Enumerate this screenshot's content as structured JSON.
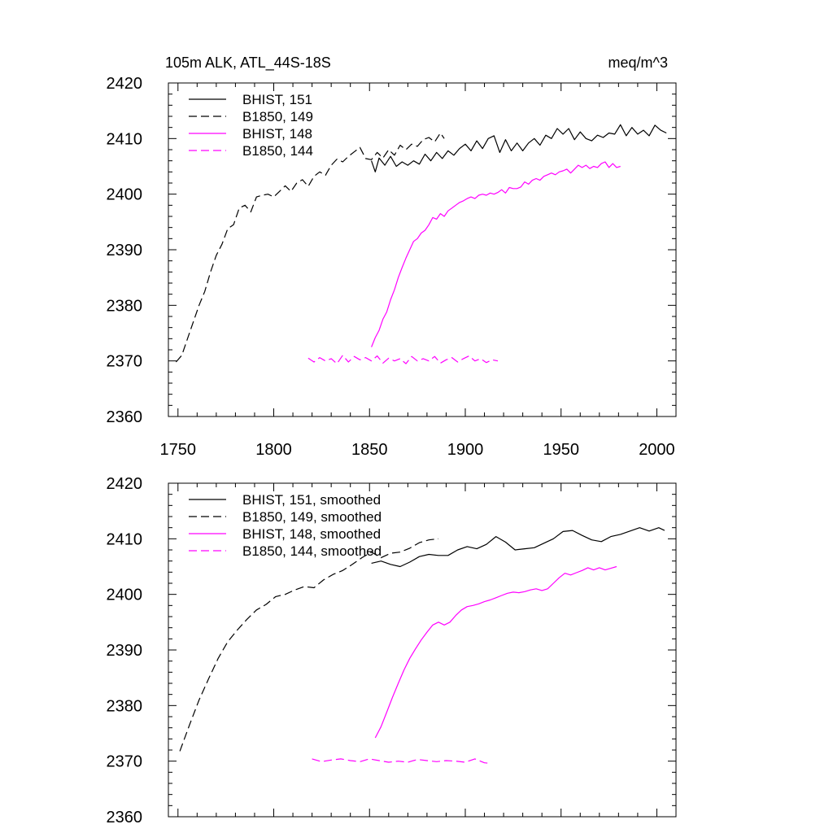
{
  "chart_data": [
    {
      "type": "line",
      "title": "105m ALK, ATL_44S-18S",
      "units": "meq/m^3",
      "xlim": [
        1745,
        2010
      ],
      "ylim": [
        2360,
        2420
      ],
      "xticks": [
        1750,
        1800,
        1850,
        1900,
        1950,
        2000
      ],
      "yticks": [
        2360,
        2370,
        2380,
        2390,
        2400,
        2410,
        2420
      ],
      "show_x_tick_labels": true,
      "legend_position": "top-left",
      "series": [
        {
          "name": "BHIST, 151",
          "color": "#000000",
          "dash": "solid",
          "x": [
            1851,
            1853,
            1855,
            1858,
            1861,
            1864,
            1867,
            1870,
            1873,
            1876,
            1879,
            1882,
            1885,
            1888,
            1891,
            1894,
            1897,
            1900,
            1903,
            1906,
            1909,
            1912,
            1915,
            1918,
            1921,
            1924,
            1927,
            1930,
            1933,
            1936,
            1939,
            1942,
            1945,
            1948,
            1951,
            1954,
            1957,
            1960,
            1963,
            1966,
            1969,
            1972,
            1975,
            1978,
            1981,
            1984,
            1987,
            1990,
            1993,
            1996,
            1999,
            2002,
            2005
          ],
          "y": [
            2406,
            2404,
            2406.5,
            2405.2,
            2406.8,
            2405,
            2405.8,
            2405.2,
            2406,
            2405.4,
            2407.2,
            2406,
            2407.5,
            2406.4,
            2407.8,
            2407,
            2408.2,
            2409,
            2407.8,
            2409.6,
            2408.2,
            2410,
            2410.5,
            2407.5,
            2409.8,
            2407.8,
            2409.2,
            2407.8,
            2409.2,
            2410,
            2408.8,
            2410.6,
            2410,
            2411.8,
            2410.8,
            2411.8,
            2409.8,
            2411.2,
            2410,
            2409.6,
            2410.6,
            2410.2,
            2411,
            2410.8,
            2412.5,
            2410.5,
            2412,
            2410.8,
            2411.5,
            2410.5,
            2412.4,
            2411.5,
            2411
          ]
        },
        {
          "name": "B1850, 149",
          "color": "#000000",
          "dash": "dashed",
          "x": [
            1749,
            1752,
            1755,
            1758,
            1761,
            1764,
            1767,
            1770,
            1773,
            1776,
            1779,
            1782,
            1785,
            1788,
            1791,
            1794,
            1797,
            1800,
            1803,
            1806,
            1809,
            1812,
            1815,
            1818,
            1821,
            1824,
            1827,
            1830,
            1833,
            1836,
            1839,
            1842,
            1845,
            1848,
            1851,
            1854,
            1857,
            1860,
            1863,
            1866,
            1869,
            1872,
            1875,
            1878,
            1881,
            1884,
            1887,
            1889
          ],
          "y": [
            2369.8,
            2371,
            2374,
            2377,
            2380,
            2382.5,
            2386,
            2389,
            2391,
            2393.8,
            2394.5,
            2397.5,
            2398,
            2396.8,
            2399.5,
            2399.8,
            2400,
            2399.5,
            2400.5,
            2401.5,
            2400.5,
            2402,
            2402.6,
            2401.4,
            2403.2,
            2404,
            2403.4,
            2405.2,
            2406.3,
            2405.8,
            2406.8,
            2407.6,
            2408.4,
            2406.4,
            2406.2,
            2407.5,
            2406.5,
            2408,
            2407,
            2408.8,
            2408,
            2409,
            2408.6,
            2409.8,
            2410.2,
            2409.4,
            2411,
            2410
          ]
        },
        {
          "name": "BHIST, 148",
          "color": "#ff00ff",
          "dash": "solid",
          "x": [
            1851,
            1853,
            1855,
            1857,
            1859,
            1861,
            1863,
            1865,
            1867,
            1869,
            1871,
            1873,
            1875,
            1877,
            1879,
            1881,
            1883,
            1885,
            1887,
            1889,
            1891,
            1893,
            1895,
            1897,
            1899,
            1901,
            1903,
            1905,
            1907,
            1909,
            1911,
            1913,
            1915,
            1917,
            1919,
            1921,
            1923,
            1925,
            1927,
            1929,
            1931,
            1933,
            1935,
            1937,
            1939,
            1941,
            1943,
            1945,
            1947,
            1949,
            1951,
            1953,
            1955,
            1957,
            1959,
            1961,
            1963,
            1965,
            1967,
            1969,
            1971,
            1973,
            1975,
            1977,
            1979,
            1981
          ],
          "y": [
            2372.5,
            2374.2,
            2375.5,
            2377.5,
            2378.8,
            2381,
            2382.8,
            2385,
            2386.8,
            2388.5,
            2390,
            2391.5,
            2392,
            2393,
            2393.5,
            2394.5,
            2395.8,
            2395.5,
            2396.5,
            2396,
            2397,
            2397.5,
            2398,
            2398.5,
            2398.8,
            2399.2,
            2399.5,
            2399.2,
            2399.8,
            2400,
            2399.8,
            2400.2,
            2400,
            2400.3,
            2400.8,
            2400.2,
            2401.2,
            2401,
            2401,
            2401.3,
            2402.2,
            2401.8,
            2402.5,
            2402.8,
            2402.5,
            2403.2,
            2403.5,
            2403.8,
            2403.5,
            2404,
            2404.2,
            2404.5,
            2403.8,
            2404.5,
            2405.2,
            2404.8,
            2405.2,
            2404.6,
            2405,
            2404.8,
            2405.5,
            2405.8,
            2404.8,
            2405.5,
            2404.8,
            2405
          ]
        },
        {
          "name": "B1850, 144",
          "color": "#ff00ff",
          "dash": "dashed",
          "x": [
            1818,
            1821,
            1824,
            1827,
            1830,
            1833,
            1836,
            1839,
            1842,
            1845,
            1848,
            1851,
            1854,
            1857,
            1860,
            1863,
            1866,
            1869,
            1872,
            1875,
            1878,
            1881,
            1884,
            1887,
            1890,
            1893,
            1896,
            1899,
            1902,
            1905,
            1908,
            1911,
            1914,
            1917
          ],
          "y": [
            2370.5,
            2369.8,
            2370.6,
            2370,
            2370.4,
            2369.5,
            2371,
            2369.8,
            2370.8,
            2370.2,
            2370.6,
            2370,
            2370.9,
            2369.6,
            2370.5,
            2370,
            2370.4,
            2369.5,
            2370.8,
            2370,
            2370.4,
            2370,
            2370.8,
            2369.6,
            2370.2,
            2370.6,
            2369.8,
            2370.4,
            2370.9,
            2370,
            2370.4,
            2369.7,
            2370.2,
            2370
          ]
        }
      ]
    },
    {
      "type": "line",
      "xlim": [
        1745,
        2010
      ],
      "ylim": [
        2360,
        2420
      ],
      "xticks": [
        1750,
        1800,
        1850,
        1900,
        1950,
        2000
      ],
      "yticks": [
        2360,
        2370,
        2380,
        2390,
        2400,
        2410,
        2420
      ],
      "show_x_tick_labels": false,
      "legend_position": "top-left",
      "series": [
        {
          "name": "BHIST, 151, smoothed",
          "color": "#000000",
          "dash": "solid",
          "x": [
            1851,
            1856,
            1861,
            1866,
            1871,
            1876,
            1881,
            1886,
            1891,
            1896,
            1901,
            1906,
            1911,
            1916,
            1921,
            1926,
            1931,
            1936,
            1941,
            1946,
            1951,
            1956,
            1961,
            1966,
            1971,
            1976,
            1981,
            1986,
            1991,
            1996,
            2001,
            2004
          ],
          "y": [
            2405.6,
            2406,
            2405.4,
            2405,
            2405.8,
            2406.8,
            2407.2,
            2407,
            2407,
            2408,
            2408.6,
            2408.2,
            2409,
            2410.4,
            2409.4,
            2408,
            2408.2,
            2408.4,
            2409.2,
            2410,
            2411.3,
            2411.5,
            2410.6,
            2409.8,
            2409.5,
            2410.4,
            2410.8,
            2411.4,
            2412,
            2411.4,
            2412,
            2411.5
          ]
        },
        {
          "name": "B1850, 149, smoothed",
          "color": "#000000",
          "dash": "dashed",
          "x": [
            1751,
            1756,
            1761,
            1766,
            1771,
            1776,
            1781,
            1786,
            1791,
            1796,
            1801,
            1806,
            1811,
            1816,
            1821,
            1826,
            1831,
            1836,
            1841,
            1846,
            1851,
            1856,
            1861,
            1866,
            1871,
            1876,
            1881,
            1886
          ],
          "y": [
            2371.8,
            2376.5,
            2381,
            2384.8,
            2388.5,
            2391.5,
            2393.6,
            2395.5,
            2397.2,
            2398.2,
            2399.6,
            2400,
            2400.8,
            2401.4,
            2401.2,
            2402.6,
            2403.6,
            2404.3,
            2405.4,
            2406.6,
            2407.6,
            2406.6,
            2407.4,
            2407.6,
            2408.3,
            2409.3,
            2409.8,
            2410
          ]
        },
        {
          "name": "BHIST, 148, smoothed",
          "color": "#ff00ff",
          "dash": "solid",
          "x": [
            1853,
            1856,
            1859,
            1862,
            1865,
            1868,
            1871,
            1874,
            1877,
            1880,
            1883,
            1886,
            1889,
            1892,
            1895,
            1898,
            1901,
            1904,
            1907,
            1910,
            1913,
            1916,
            1919,
            1922,
            1925,
            1928,
            1931,
            1934,
            1937,
            1940,
            1943,
            1946,
            1949,
            1952,
            1955,
            1958,
            1961,
            1964,
            1967,
            1970,
            1973,
            1976,
            1979
          ],
          "y": [
            2374.2,
            2376.2,
            2378.8,
            2381.5,
            2384,
            2386.4,
            2388.5,
            2390.2,
            2391.8,
            2393.2,
            2394.5,
            2395,
            2394.5,
            2395,
            2396.2,
            2397.2,
            2397.8,
            2398,
            2398.3,
            2398.7,
            2399,
            2399.4,
            2399.8,
            2400.2,
            2400.4,
            2400.3,
            2400.5,
            2400.8,
            2401,
            2400.7,
            2401,
            2402,
            2403,
            2403.8,
            2403.5,
            2403.9,
            2404.3,
            2404.8,
            2404.4,
            2404.8,
            2404.4,
            2404.7,
            2405
          ]
        },
        {
          "name": "B1850, 144, smoothed",
          "color": "#ff00ff",
          "dash": "dashed",
          "x": [
            1820,
            1825,
            1830,
            1835,
            1840,
            1845,
            1850,
            1855,
            1860,
            1865,
            1870,
            1875,
            1880,
            1885,
            1890,
            1895,
            1900,
            1905,
            1910,
            1913
          ],
          "y": [
            2370.4,
            2369.9,
            2370.2,
            2370.4,
            2370.1,
            2369.9,
            2370.4,
            2370.1,
            2369.8,
            2370,
            2369.8,
            2370.3,
            2370.1,
            2369.9,
            2370.1,
            2370,
            2369.8,
            2370.4,
            2369.7,
            2369.6
          ]
        }
      ]
    }
  ]
}
